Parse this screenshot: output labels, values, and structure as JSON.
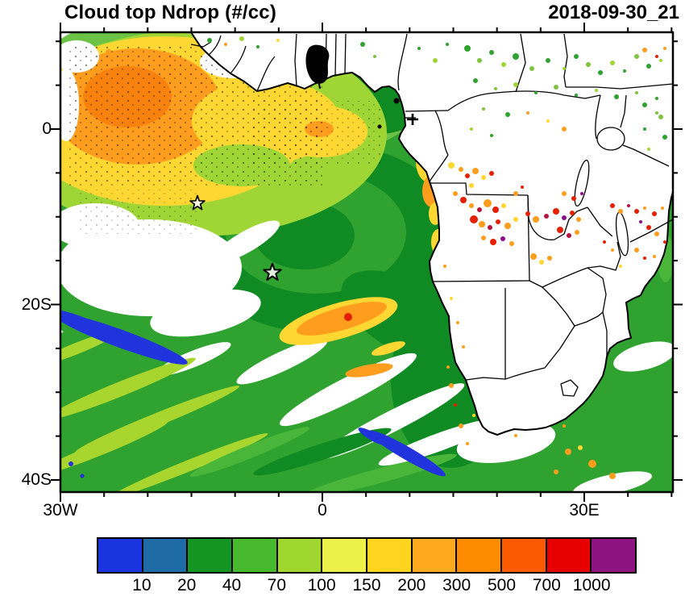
{
  "title": "Cloud top Ndrop (#/cc)",
  "timestamp": "2018-09-30_21",
  "axes": {
    "y_ticks": [
      "0",
      "20S",
      "40S"
    ],
    "x_ticks": [
      "30W",
      "0",
      "30E"
    ]
  },
  "colorbar": {
    "labels": [
      "10",
      "20",
      "40",
      "70",
      "100",
      "150",
      "200",
      "300",
      "500",
      "700",
      "1000"
    ],
    "colors": [
      "#1a35e0",
      "#1e6ba6",
      "#149422",
      "#46ba2c",
      "#a0d630",
      "#eef04a",
      "#ffd41e",
      "#ffaa1e",
      "#ff8c00",
      "#fb5a00",
      "#e60000",
      "#8c1380"
    ]
  },
  "chart_data": {
    "type": "heatmap",
    "title": "Cloud top Ndrop (#/cc)",
    "timestamp": "2018-09-30_21",
    "units": "#/cc",
    "x_axis": {
      "ticks": [
        "30W",
        "0",
        "30E"
      ],
      "range_deg_lon": [
        -30,
        40
      ]
    },
    "y_axis": {
      "ticks": [
        "0",
        "20S",
        "40S"
      ],
      "range_deg_lat": [
        11,
        -41
      ]
    },
    "colorbar_levels": [
      10,
      20,
      40,
      70,
      100,
      150,
      200,
      300,
      500,
      700,
      1000
    ],
    "colorbar_colors": [
      "#1a35e0",
      "#1e6ba6",
      "#149422",
      "#46ba2c",
      "#a0d630",
      "#eef04a",
      "#ffd41e",
      "#ffaa1e",
      "#ff8c00",
      "#fb5a00",
      "#e60000",
      "#8c1380"
    ],
    "legend_position": "bottom",
    "grid": false,
    "markers": [
      {
        "type": "star",
        "lon": -14.3,
        "lat": -8.5
      },
      {
        "type": "star",
        "lon": -5.7,
        "lat": -16.4
      }
    ],
    "field_summary": "Cloud droplet number concentration at cloud top over the southeast Atlantic and Africa; 40-150 #/cc (green/yellow) over most marine stratocumulus, 150-300 #/cc (orange) in the northwest, >300 #/cc (red/purple) specks over central/southern Africa, <20 #/cc (blue) streaks in the far southwest; white areas are cloud-free or land."
  }
}
